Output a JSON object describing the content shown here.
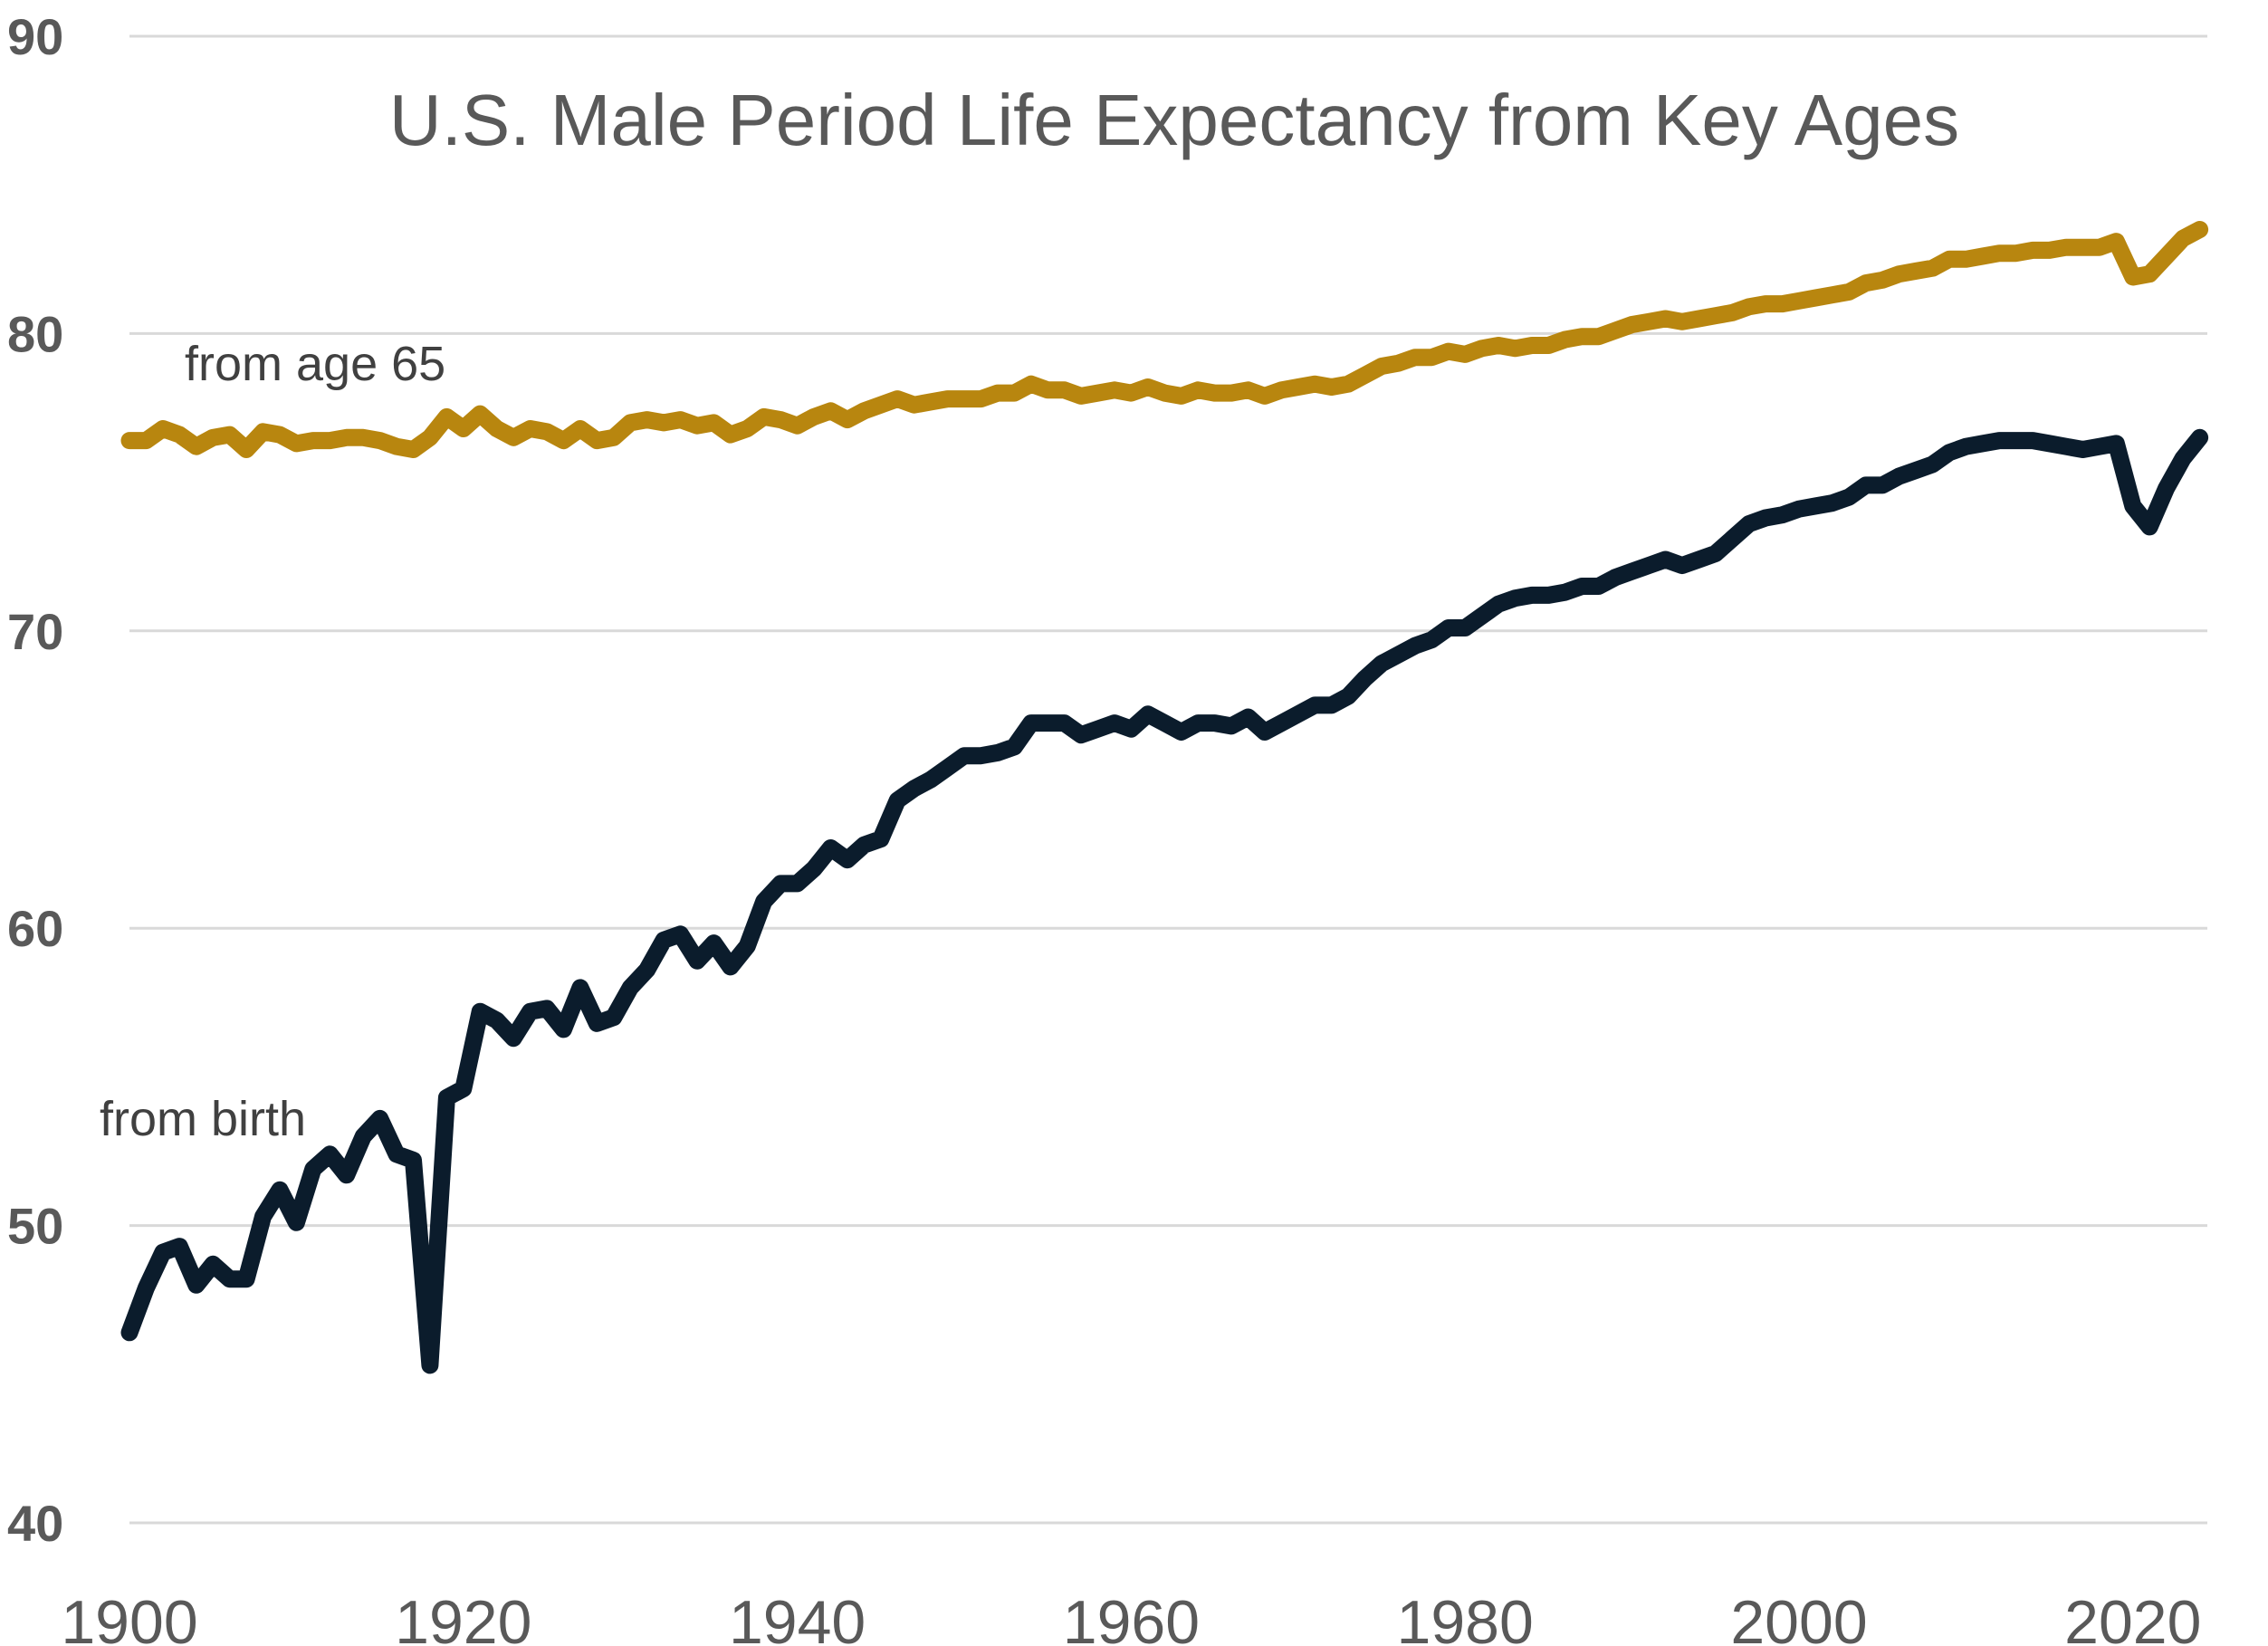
{
  "chart_data": {
    "type": "line",
    "title": "U.S. Male Period Life Expectancy from Key Ages",
    "xlabel": "",
    "ylabel": "",
    "xlim": [
      1900,
      2024
    ],
    "ylim": [
      40,
      90
    ],
    "grid": true,
    "yticks": [
      90,
      80,
      70,
      60,
      50,
      40
    ],
    "xticks": [
      1900,
      1920,
      1940,
      1960,
      1980,
      2000,
      2020
    ],
    "x_start": 1900,
    "series": [
      {
        "name": "from age 65",
        "color": "#B8860F",
        "values": [
          76.4,
          76.4,
          76.8,
          76.6,
          76.2,
          76.5,
          76.6,
          76.1,
          76.7,
          76.6,
          76.3,
          76.4,
          76.4,
          76.5,
          76.5,
          76.4,
          76.2,
          76.1,
          76.5,
          77.2,
          76.8,
          77.3,
          76.8,
          76.5,
          76.8,
          76.7,
          76.4,
          76.8,
          76.4,
          76.5,
          77.0,
          77.1,
          77.0,
          77.1,
          76.9,
          77.0,
          76.6,
          76.8,
          77.2,
          77.1,
          76.9,
          77.2,
          77.4,
          77.1,
          77.4,
          77.6,
          77.8,
          77.6,
          77.7,
          77.8,
          77.8,
          77.8,
          78.0,
          78.0,
          78.3,
          78.1,
          78.1,
          77.9,
          78.0,
          78.1,
          78.0,
          78.2,
          78.0,
          77.9,
          78.1,
          78.0,
          78.0,
          78.1,
          77.9,
          78.1,
          78.2,
          78.3,
          78.2,
          78.3,
          78.6,
          78.9,
          79.0,
          79.2,
          79.2,
          79.4,
          79.3,
          79.5,
          79.6,
          79.5,
          79.6,
          79.6,
          79.8,
          79.9,
          79.9,
          80.1,
          80.3,
          80.4,
          80.5,
          80.4,
          80.5,
          80.6,
          80.7,
          80.9,
          81.0,
          81.0,
          81.1,
          81.2,
          81.3,
          81.4,
          81.7,
          81.8,
          82.0,
          82.1,
          82.2,
          82.5,
          82.5,
          82.6,
          82.7,
          82.7,
          82.8,
          82.8,
          82.9,
          82.9,
          82.9,
          83.1,
          81.9,
          82.0,
          82.6,
          83.2,
          83.5
        ]
      },
      {
        "name": "from birth",
        "color": "#0B1C2C",
        "values": [
          46.4,
          47.9,
          49.1,
          49.3,
          48.0,
          48.7,
          48.2,
          48.2,
          50.3,
          51.2,
          50.1,
          51.9,
          52.4,
          51.7,
          53.0,
          53.6,
          52.4,
          52.2,
          45.3,
          54.3,
          54.6,
          57.2,
          56.9,
          56.3,
          57.2,
          57.3,
          56.6,
          58.0,
          56.8,
          57.0,
          58.0,
          58.6,
          59.6,
          59.8,
          58.9,
          59.5,
          58.7,
          59.4,
          60.9,
          61.5,
          61.5,
          62.0,
          62.7,
          62.3,
          62.8,
          63.0,
          64.3,
          64.7,
          65.0,
          65.4,
          65.8,
          65.8,
          65.9,
          66.1,
          66.9,
          66.9,
          66.9,
          66.5,
          66.7,
          66.9,
          66.7,
          67.2,
          66.9,
          66.6,
          66.9,
          66.9,
          66.8,
          67.1,
          66.6,
          66.9,
          67.2,
          67.5,
          67.5,
          67.8,
          68.4,
          68.9,
          69.2,
          69.5,
          69.7,
          70.1,
          70.1,
          70.5,
          70.9,
          71.1,
          71.2,
          71.2,
          71.3,
          71.5,
          71.5,
          71.8,
          72.0,
          72.2,
          72.4,
          72.2,
          72.4,
          72.6,
          73.1,
          73.6,
          73.8,
          73.9,
          74.1,
          74.2,
          74.3,
          74.5,
          74.9,
          74.9,
          75.2,
          75.4,
          75.6,
          76.0,
          76.2,
          76.3,
          76.4,
          76.4,
          76.4,
          76.3,
          76.2,
          76.1,
          76.2,
          76.3,
          74.2,
          73.5,
          74.8,
          75.8,
          76.5
        ]
      }
    ],
    "annotations": [
      "from age 65",
      "from birth"
    ]
  }
}
